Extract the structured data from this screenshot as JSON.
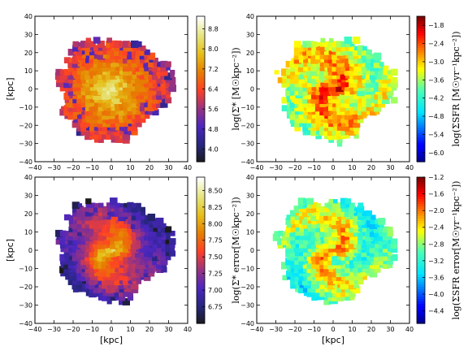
{
  "chart_data": [
    {
      "type": "heatmap",
      "panel": "top-left",
      "xlim": [
        -40,
        40
      ],
      "ylim": [
        -40,
        40
      ],
      "xticks": [
        "−40",
        "−30",
        "−20",
        "−10",
        "0",
        "10",
        "20",
        "30",
        "40"
      ],
      "yticks": [
        "40",
        "30",
        "20",
        "10",
        "0",
        "−10",
        "−20",
        "−30",
        "−40"
      ],
      "xlabel": "",
      "ylabel": "[kpc]",
      "colorbar": {
        "label": "log(Σ* [M☉kpc⁻²])",
        "cmap": "CMRmap",
        "range": [
          3.5,
          9.3
        ],
        "ticks": [
          "8.8",
          "8.0",
          "7.2",
          "6.4",
          "5.6",
          "4.8",
          "4.0"
        ],
        "tick_values": [
          8.8,
          8.0,
          7.2,
          6.4,
          5.6,
          4.8,
          4.0
        ]
      },
      "map": {
        "center_value": 8.9,
        "edge_value": 5.9,
        "noise": 0.45,
        "low_patches": true,
        "spiral": 0
      }
    },
    {
      "type": "heatmap",
      "panel": "top-right",
      "xlim": [
        -40,
        40
      ],
      "ylim": [
        -40,
        40
      ],
      "xticks": [
        "−40",
        "−30",
        "−20",
        "−10",
        "0",
        "10",
        "20",
        "30",
        "40"
      ],
      "yticks": [
        "40",
        "30",
        "20",
        "10",
        "0",
        "−10",
        "−20",
        "−30",
        "−40"
      ],
      "xlabel": "",
      "ylabel": "",
      "colorbar": {
        "label": "log(ΣSFR [M☉yr⁻¹kpc⁻²])",
        "cmap": "jet",
        "range": [
          -6.3,
          -1.5
        ],
        "ticks": [
          "−1.8",
          "−2.4",
          "−3.0",
          "−3.6",
          "−4.2",
          "−4.8",
          "−5.4",
          "−6.0"
        ],
        "tick_values": [
          -1.8,
          -2.4,
          -3.0,
          -3.6,
          -4.2,
          -4.8,
          -5.4,
          -6.0
        ]
      },
      "map": {
        "center_value": -2.3,
        "edge_value": -3.6,
        "noise": 0.5,
        "low_patches": false,
        "spiral": 0.45
      }
    },
    {
      "type": "heatmap",
      "panel": "bottom-left",
      "xlim": [
        -40,
        40
      ],
      "ylim": [
        -40,
        40
      ],
      "xticks": [
        "−40",
        "−30",
        "−20",
        "−10",
        "0",
        "10",
        "20",
        "30",
        "40"
      ],
      "yticks": [
        "40",
        "30",
        "20",
        "10",
        "0",
        "−10",
        "−20",
        "−30",
        "−40"
      ],
      "xlabel": "[kpc]",
      "ylabel": "[kpc]",
      "colorbar": {
        "label": "log(Σ* error[M☉kpc⁻²])",
        "cmap": "CMRmap",
        "range": [
          6.5,
          8.7
        ],
        "ticks": [
          "8.50",
          "8.25",
          "8.00",
          "7.75",
          "7.50",
          "7.25",
          "7.00",
          "6.75"
        ],
        "tick_values": [
          8.5,
          8.25,
          8.0,
          7.75,
          7.5,
          7.25,
          7.0,
          6.75
        ]
      },
      "map": {
        "center_value": 8.3,
        "edge_value": 6.85,
        "noise": 0.12,
        "low_patches": true,
        "spiral": 0.2
      }
    },
    {
      "type": "heatmap",
      "panel": "bottom-right",
      "xlim": [
        -40,
        40
      ],
      "ylim": [
        -40,
        40
      ],
      "xticks": [
        "−40",
        "−30",
        "−20",
        "−10",
        "0",
        "10",
        "20",
        "30",
        "40"
      ],
      "yticks": [
        "40",
        "30",
        "20",
        "10",
        "0",
        "−10",
        "−20",
        "−30",
        "−40"
      ],
      "xlabel": "[kpc]",
      "ylabel": "",
      "colorbar": {
        "label": "log(ΣSFR error[M☉yr⁻¹kpc⁻²])",
        "cmap": "jet",
        "range": [
          -4.7,
          -1.2
        ],
        "ticks": [
          "−1.2",
          "−1.6",
          "−2.0",
          "−2.4",
          "−2.8",
          "−3.2",
          "−3.6",
          "−4.0",
          "−4.4"
        ],
        "tick_values": [
          -1.2,
          -1.6,
          -2.0,
          -2.4,
          -2.8,
          -3.2,
          -3.6,
          -4.0,
          -4.4
        ]
      },
      "map": {
        "center_value": -2.1,
        "edge_value": -3.1,
        "noise": 0.35,
        "low_patches": false,
        "spiral": 0.45
      }
    }
  ]
}
